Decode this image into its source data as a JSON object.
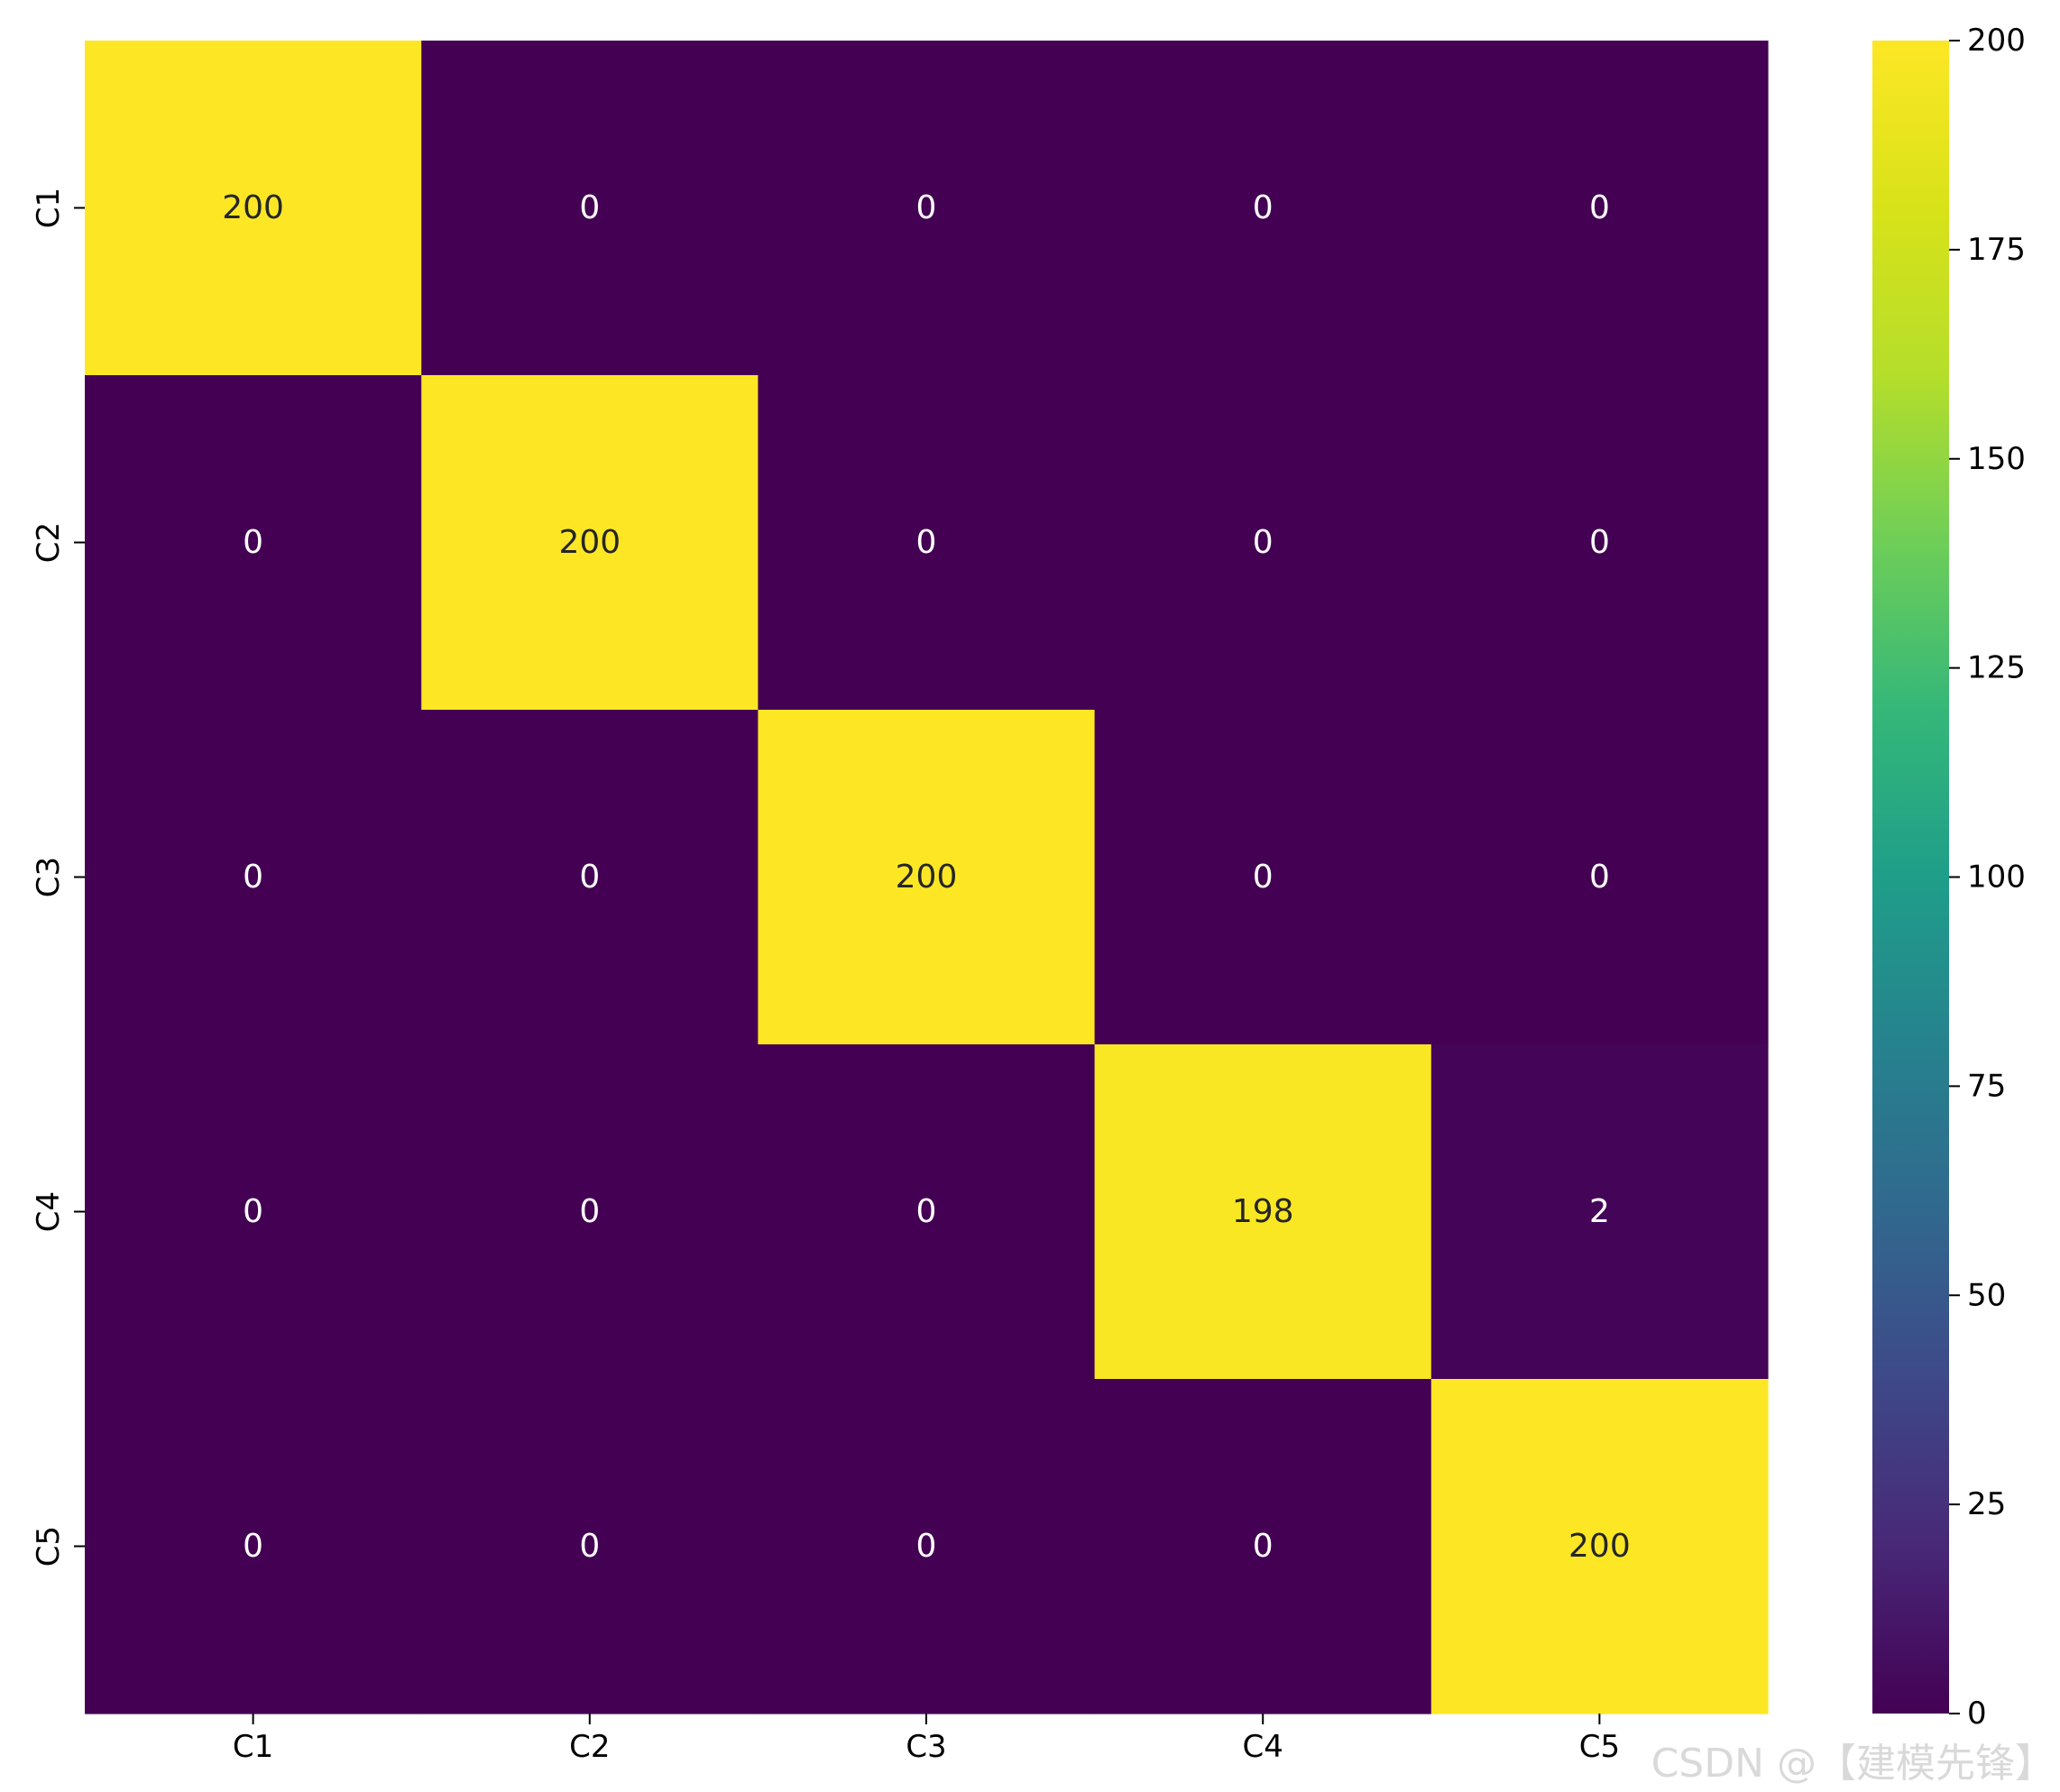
{
  "chart_data": {
    "type": "heatmap",
    "title": "",
    "xlabel": "",
    "ylabel": "",
    "x_categories": [
      "C1",
      "C2",
      "C3",
      "C4",
      "C5"
    ],
    "y_categories": [
      "C1",
      "C2",
      "C3",
      "C4",
      "C5"
    ],
    "values": [
      [
        200,
        0,
        0,
        0,
        0
      ],
      [
        0,
        200,
        0,
        0,
        0
      ],
      [
        0,
        0,
        200,
        0,
        0
      ],
      [
        0,
        0,
        0,
        198,
        2
      ],
      [
        0,
        0,
        0,
        0,
        200
      ]
    ],
    "colormap": "viridis",
    "vmin": 0,
    "vmax": 200,
    "colorbar_ticks": [
      0,
      25,
      50,
      75,
      100,
      125,
      150,
      175,
      200
    ],
    "colors": {
      "low": "#440154",
      "high": "#fde725",
      "text_on_dark": "#ffffff",
      "text_on_light": "#262626"
    },
    "grid": false
  },
  "watermark": "CSDN @【建模先锋】"
}
